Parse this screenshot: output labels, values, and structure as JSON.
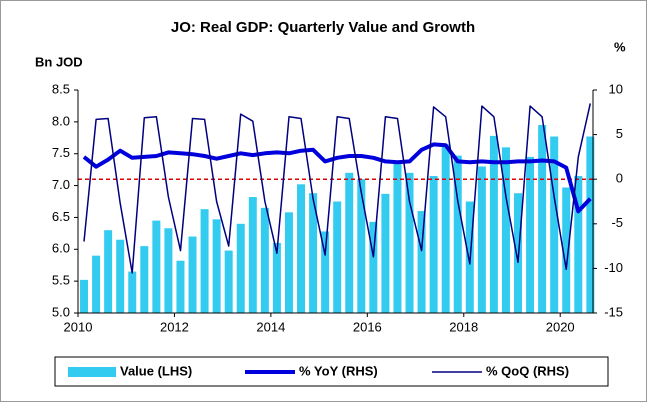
{
  "chart_data": {
    "type": "bar_line_combo",
    "title": "JO: Real GDP: Quarterly Value and Growth",
    "y_label": "Bn JOD",
    "y2_label": "%",
    "x": [
      2010.125,
      2010.375,
      2010.625,
      2010.875,
      2011.125,
      2011.375,
      2011.625,
      2011.875,
      2012.125,
      2012.375,
      2012.625,
      2012.875,
      2013.125,
      2013.375,
      2013.625,
      2013.875,
      2014.125,
      2014.375,
      2014.625,
      2014.875,
      2015.125,
      2015.375,
      2015.625,
      2015.875,
      2016.125,
      2016.375,
      2016.625,
      2016.875,
      2017.125,
      2017.375,
      2017.625,
      2017.875,
      2018.125,
      2018.375,
      2018.625,
      2018.875,
      2019.125,
      2019.375,
      2019.625,
      2019.875,
      2020.125,
      2020.375,
      2020.625
    ],
    "series": [
      {
        "name": "Value (LHS)",
        "kind": "bar",
        "axis": "y",
        "color": "#33ccf0",
        "values": [
          5.52,
          5.9,
          6.3,
          6.15,
          5.65,
          6.05,
          6.45,
          6.33,
          5.82,
          6.2,
          6.63,
          6.47,
          5.98,
          6.4,
          6.82,
          6.65,
          6.1,
          6.58,
          7.02,
          6.88,
          6.28,
          6.75,
          7.2,
          7.1,
          6.43,
          6.87,
          7.35,
          7.2,
          6.6,
          7.15,
          7.65,
          7.47,
          6.75,
          7.3,
          7.78,
          7.6,
          6.88,
          7.45,
          7.95,
          7.77,
          6.97,
          7.15,
          7.77
        ]
      },
      {
        "name": "% YoY (RHS)",
        "kind": "line",
        "axis": "y2",
        "color": "#0000dd",
        "width": 4,
        "values": [
          2.5,
          1.4,
          2.2,
          3.2,
          2.4,
          2.5,
          2.6,
          3.0,
          2.9,
          2.8,
          2.6,
          2.3,
          2.6,
          2.9,
          2.7,
          2.9,
          3.0,
          2.9,
          3.2,
          3.3,
          2.0,
          2.4,
          2.6,
          2.6,
          2.4,
          2.0,
          1.9,
          2.0,
          3.3,
          3.9,
          3.8,
          2.0,
          1.9,
          2.0,
          1.9,
          1.9,
          2.0,
          2.0,
          2.1,
          2.0,
          1.3,
          -3.6,
          -2.2
        ]
      },
      {
        "name": "% QoQ (RHS)",
        "kind": "line",
        "axis": "y2",
        "color": "#000080",
        "width": 1.5,
        "values": [
          -7,
          6.7,
          6.8,
          -2.7,
          -10.5,
          6.9,
          7.0,
          -2,
          -8,
          6.8,
          6.7,
          -2.5,
          -7.5,
          7.3,
          6.5,
          -2.5,
          -8.3,
          7.0,
          6.8,
          -2.2,
          -8.5,
          7.0,
          6.8,
          -1.5,
          -8.7,
          7.0,
          6.8,
          -2.5,
          -8.0,
          8.1,
          7.0,
          -2.4,
          -9.5,
          8.2,
          7.0,
          -2.0,
          -9.3,
          8.2,
          7.0,
          -2.0,
          -10.1,
          2.5,
          8.5
        ]
      }
    ],
    "xlim": [
      2010,
      2020.68
    ],
    "xticks": [
      2010,
      2012,
      2014,
      2016,
      2018,
      2020
    ],
    "ylim": [
      5,
      8.5
    ],
    "yticks": [
      {
        "value": 5,
        "label": "5.0"
      },
      {
        "value": 5.5,
        "label": "5.5"
      },
      {
        "value": 6,
        "label": "6.0"
      },
      {
        "value": 6.5,
        "label": "6.5"
      },
      {
        "value": 7,
        "label": "7.0"
      },
      {
        "value": 7.5,
        "label": "7.5"
      },
      {
        "value": 8,
        "label": "8.0"
      },
      {
        "value": 8.5,
        "label": "8.5"
      }
    ],
    "y2lim": [
      -15,
      10
    ],
    "y2ticks": [
      -15,
      -10,
      -5,
      0,
      5,
      10
    ],
    "reference_line": {
      "axis": "y2",
      "value": 0,
      "color": "#e00000"
    },
    "legend": "bottom"
  }
}
